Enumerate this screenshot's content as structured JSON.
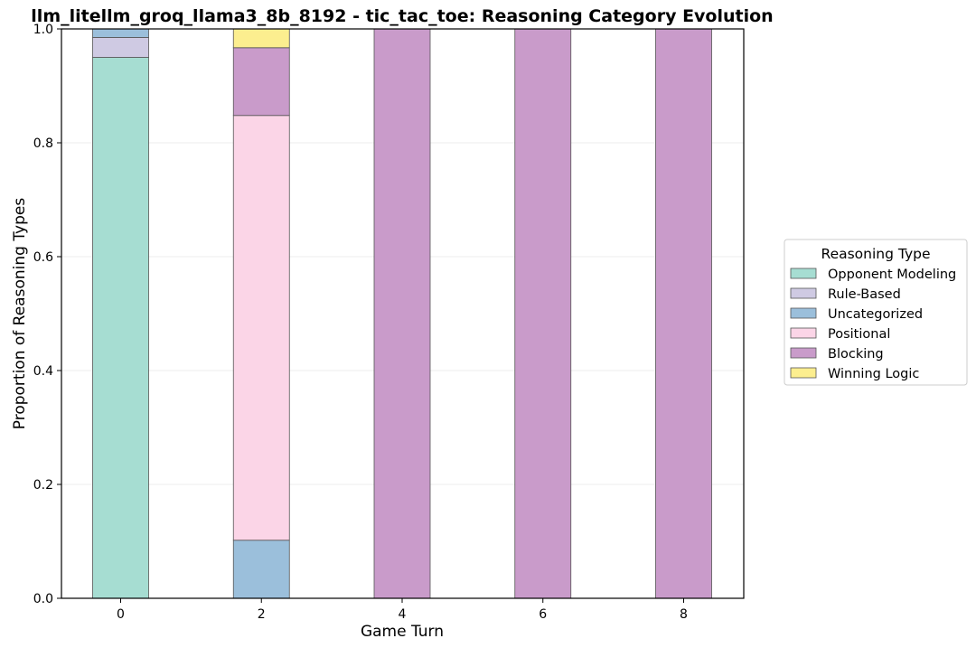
{
  "chart_data": {
    "type": "bar",
    "stacked": true,
    "title": "llm_litellm_groq_llama3_8b_8192 - tic_tac_toe: Reasoning Category Evolution",
    "xlabel": "Game Turn",
    "ylabel": "Proportion of Reasoning Types",
    "categories": [
      "0",
      "2",
      "4",
      "6",
      "8"
    ],
    "ylim": [
      0,
      1
    ],
    "yticks": [
      "0.0",
      "0.2",
      "0.4",
      "0.6",
      "0.8",
      "1.0"
    ],
    "grid": "horizontal",
    "legend": {
      "title": "Reasoning Type",
      "placement": "right"
    },
    "series": [
      {
        "name": "Uncategorized",
        "color": "#9bbfdb",
        "values": [
          0.015,
          0.102,
          0,
          0,
          0
        ]
      },
      {
        "name": "Opponent Modeling",
        "color": "#a6ddd2",
        "values": [
          0.95,
          0,
          0,
          0,
          0
        ]
      },
      {
        "name": "Positional",
        "color": "#fbd5e7",
        "values": [
          0,
          0.746,
          0,
          0,
          0
        ]
      },
      {
        "name": "Rule-Based",
        "color": "#cfcae3",
        "values": [
          0.035,
          0,
          0,
          0,
          0
        ]
      },
      {
        "name": "Blocking",
        "color": "#c99bca",
        "values": [
          0,
          0.119,
          1.0,
          1.0,
          1.0
        ]
      },
      {
        "name": "Winning Logic",
        "color": "#fcee8f",
        "values": [
          0,
          0.033,
          0,
          0,
          0
        ]
      }
    ],
    "stack_order": [
      [
        "Opponent Modeling",
        "Rule-Based",
        "Uncategorized"
      ],
      [
        "Uncategorized",
        "Positional",
        "Blocking",
        "Winning Logic"
      ],
      [
        "Blocking"
      ],
      [
        "Blocking"
      ],
      [
        "Blocking"
      ]
    ],
    "legend_order": [
      "Opponent Modeling",
      "Rule-Based",
      "Uncategorized",
      "Positional",
      "Blocking",
      "Winning Logic"
    ]
  }
}
